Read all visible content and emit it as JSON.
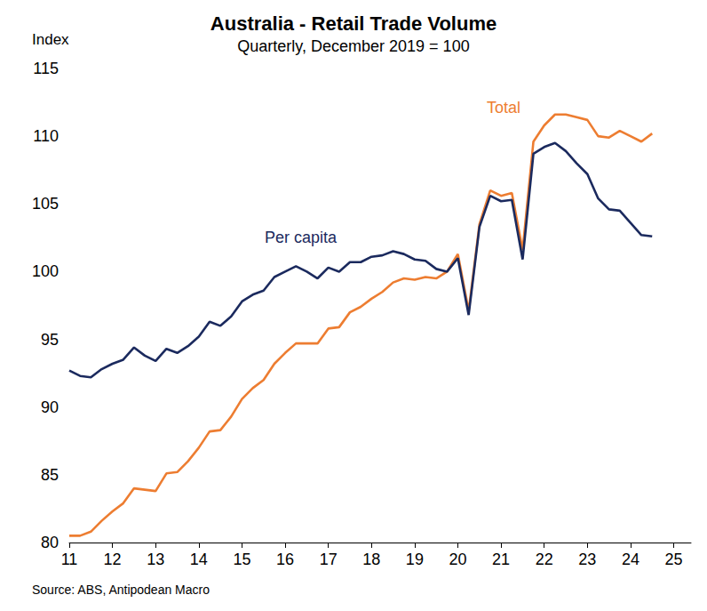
{
  "chart_data": {
    "type": "line",
    "title": "Australia - Retail Trade Volume",
    "subtitle": "Quarterly, December 2019 = 100",
    "ylabel": "Index",
    "source": "Source: ABS, Antipodean Macro",
    "x": [
      11,
      11.25,
      11.5,
      11.75,
      12,
      12.25,
      12.5,
      12.75,
      13,
      13.25,
      13.5,
      13.75,
      14,
      14.25,
      14.5,
      14.75,
      15,
      15.25,
      15.5,
      15.75,
      16,
      16.25,
      16.5,
      16.75,
      17,
      17.25,
      17.5,
      17.75,
      18,
      18.25,
      18.5,
      18.75,
      19,
      19.25,
      19.5,
      19.75,
      20,
      20.25,
      20.5,
      20.75,
      21,
      21.25,
      21.5,
      21.75,
      22,
      22.25,
      22.5,
      22.75,
      23,
      23.25,
      23.5,
      23.75,
      24,
      24.25,
      24.5
    ],
    "series": [
      {
        "name": "Total",
        "color": "#ED7D31",
        "values": [
          80.5,
          80.5,
          80.8,
          81.6,
          82.3,
          82.9,
          84.0,
          83.9,
          83.8,
          85.1,
          85.2,
          86.0,
          87.0,
          88.2,
          88.3,
          89.3,
          90.6,
          91.4,
          92.0,
          93.2,
          94.0,
          94.7,
          94.7,
          94.7,
          95.8,
          95.9,
          97.0,
          97.4,
          98.0,
          98.5,
          99.2,
          99.5,
          99.4,
          99.6,
          99.5,
          100.0,
          101.3,
          97.1,
          103.5,
          106.0,
          105.6,
          105.8,
          101.6,
          109.6,
          110.8,
          111.6,
          111.6,
          111.4,
          111.2,
          110.0,
          109.9,
          110.4,
          110.0,
          109.6,
          110.2
        ]
      },
      {
        "name": "Per capita",
        "color": "#1B2A5E",
        "values": [
          92.7,
          92.3,
          92.2,
          92.8,
          93.2,
          93.5,
          94.4,
          93.8,
          93.4,
          94.3,
          94.0,
          94.5,
          95.2,
          96.3,
          96.0,
          96.7,
          97.8,
          98.3,
          98.6,
          99.6,
          100.0,
          100.4,
          100.0,
          99.5,
          100.3,
          100.0,
          100.7,
          100.7,
          101.1,
          101.2,
          101.5,
          101.3,
          100.9,
          100.8,
          100.2,
          100.0,
          101.0,
          96.8,
          103.3,
          105.6,
          105.2,
          105.3,
          100.9,
          108.7,
          109.2,
          109.5,
          108.9,
          108.0,
          107.2,
          105.4,
          104.6,
          104.5,
          103.6,
          102.7,
          102.6
        ]
      }
    ],
    "xlim": [
      11,
      25.4
    ],
    "xticks": [
      11,
      12,
      13,
      14,
      15,
      16,
      17,
      18,
      19,
      20,
      21,
      22,
      23,
      24,
      25
    ],
    "ylim": [
      80,
      115
    ],
    "yticks": [
      80,
      85,
      90,
      95,
      100,
      105,
      110,
      115
    ],
    "grid": false
  }
}
